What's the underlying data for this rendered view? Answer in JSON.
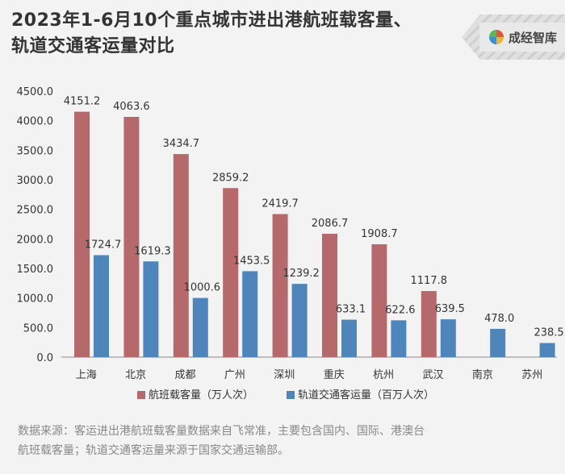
{
  "header": {
    "title_line1": "2023年1-6月10个重点城市进出港航班载客量、",
    "title_line2": "轨道交通客运量对比"
  },
  "brand": {
    "name": "成经智库",
    "icon": "colorful-ring-logo-icon"
  },
  "colors": {
    "flights": "#b5696b",
    "rail": "#4e86bb",
    "axis": "#888888",
    "grid": "#dddddd"
  },
  "chart_data": {
    "type": "bar",
    "categories": [
      "上海",
      "北京",
      "成都",
      "广州",
      "深圳",
      "重庆",
      "杭州",
      "武汉",
      "南京",
      "苏州"
    ],
    "series": [
      {
        "name": "航班载客量（万人次）",
        "values": [
          4151.2,
          4063.6,
          3434.7,
          2859.2,
          2419.7,
          2086.7,
          1908.7,
          1117.8,
          null,
          null
        ]
      },
      {
        "name": "轨道交通客运量（百万人次）",
        "values": [
          1724.7,
          1619.3,
          1000.6,
          1453.5,
          1239.2,
          633.1,
          622.6,
          639.5,
          478.0,
          238.5
        ]
      }
    ],
    "y_ticks": [
      "0.0",
      "500.0",
      "1000.0",
      "1500.0",
      "2000.0",
      "2500.0",
      "3000.0",
      "3500.0",
      "4000.0",
      "4500.0"
    ],
    "ylim": [
      0,
      4500
    ],
    "legend_position": "bottom",
    "grid": false
  },
  "footnote": {
    "line1": "数据来源：客运进出港航班载客量数据来自飞常准，主要包含国内、国际、港澳台",
    "line2": "航班载客量；轨道交通客运量来源于国家交通运输部。"
  }
}
